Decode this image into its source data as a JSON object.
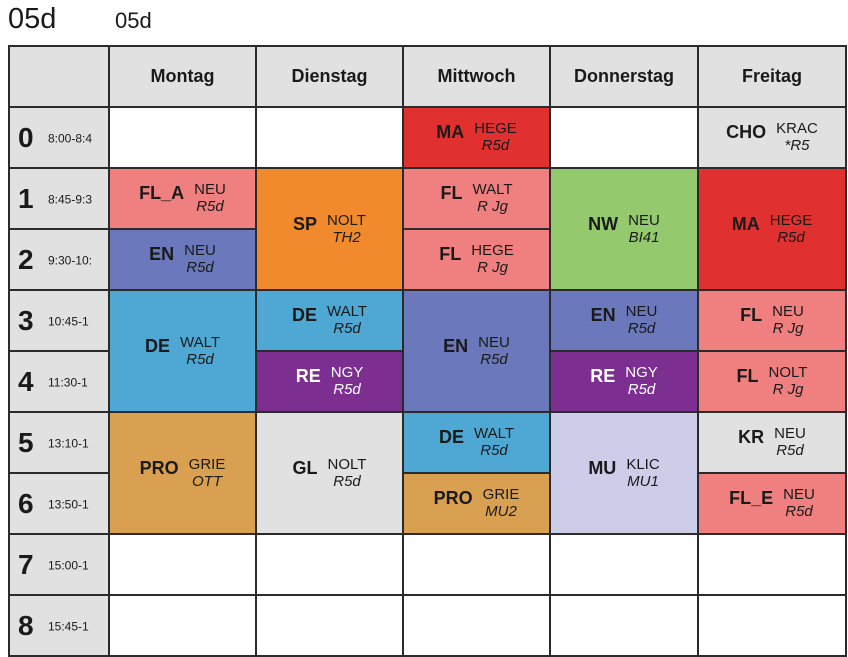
{
  "title": "05d",
  "subtitle": "05d",
  "days": [
    "Montag",
    "Dienstag",
    "Mittwoch",
    "Donnerstag",
    "Freitag"
  ],
  "periods": [
    {
      "num": "0",
      "time": "8:00-8:4"
    },
    {
      "num": "1",
      "time": "8:45-9:3"
    },
    {
      "num": "2",
      "time": "9:30-10:"
    },
    {
      "num": "3",
      "time": "10:45-1"
    },
    {
      "num": "4",
      "time": "11:30-1"
    },
    {
      "num": "5",
      "time": "13:10-1"
    },
    {
      "num": "6",
      "time": "13:50-1"
    },
    {
      "num": "7",
      "time": "15:00-1"
    },
    {
      "num": "8",
      "time": "15:45-1"
    }
  ],
  "lessons": [
    {
      "day": 0,
      "start": 1,
      "span": 1,
      "subject": "FL_A",
      "teacher": "NEU",
      "room": "R5d",
      "color": "#f08080"
    },
    {
      "day": 0,
      "start": 2,
      "span": 1,
      "subject": "EN",
      "teacher": "NEU",
      "room": "R5d",
      "color": "#6b78bb"
    },
    {
      "day": 0,
      "start": 3,
      "span": 2,
      "subject": "DE",
      "teacher": "WALT",
      "room": "R5d",
      "color": "#4fa8d3"
    },
    {
      "day": 0,
      "start": 5,
      "span": 2,
      "subject": "PRO",
      "teacher": "GRIE",
      "room": "OTT",
      "color": "#d8a050"
    },
    {
      "day": 1,
      "start": 1,
      "span": 2,
      "subject": "SP",
      "teacher": "NOLT",
      "room": "TH2",
      "color": "#f08a2c"
    },
    {
      "day": 1,
      "start": 3,
      "span": 1,
      "subject": "DE",
      "teacher": "WALT",
      "room": "R5d",
      "color": "#4fa8d3"
    },
    {
      "day": 1,
      "start": 4,
      "span": 1,
      "subject": "RE",
      "teacher": "NGY",
      "room": "R5d",
      "color": "#7c2e91",
      "light": true
    },
    {
      "day": 1,
      "start": 5,
      "span": 2,
      "subject": "GL",
      "teacher": "NOLT",
      "room": "R5d",
      "color": "#e1e1e1"
    },
    {
      "day": 2,
      "start": 0,
      "span": 1,
      "subject": "MA",
      "teacher": "HEGE",
      "room": "R5d",
      "color": "#e03030"
    },
    {
      "day": 2,
      "start": 1,
      "span": 1,
      "subject": "FL",
      "teacher": "WALT",
      "room": "R Jg",
      "color": "#f08080"
    },
    {
      "day": 2,
      "start": 2,
      "span": 1,
      "subject": "FL",
      "teacher": "HEGE",
      "room": "R Jg",
      "color": "#f08080"
    },
    {
      "day": 2,
      "start": 3,
      "span": 2,
      "subject": "EN",
      "teacher": "NEU",
      "room": "R5d",
      "color": "#6b78bb"
    },
    {
      "day": 2,
      "start": 5,
      "span": 1,
      "subject": "DE",
      "teacher": "WALT",
      "room": "R5d",
      "color": "#4fa8d3"
    },
    {
      "day": 2,
      "start": 6,
      "span": 1,
      "subject": "PRO",
      "teacher": "GRIE",
      "room": "MU2",
      "color": "#d8a050"
    },
    {
      "day": 3,
      "start": 1,
      "span": 2,
      "subject": "NW",
      "teacher": "NEU",
      "room": "BI41",
      "color": "#95c96e"
    },
    {
      "day": 3,
      "start": 3,
      "span": 1,
      "subject": "EN",
      "teacher": "NEU",
      "room": "R5d",
      "color": "#6b78bb"
    },
    {
      "day": 3,
      "start": 4,
      "span": 1,
      "subject": "RE",
      "teacher": "NGY",
      "room": "R5d",
      "color": "#7c2e91",
      "light": true
    },
    {
      "day": 3,
      "start": 5,
      "span": 2,
      "subject": "MU",
      "teacher": "KLIC",
      "room": "MU1",
      "color": "#cdcdea"
    },
    {
      "day": 4,
      "start": 0,
      "span": 1,
      "subject": "CHO",
      "teacher": "KRAC",
      "room": "*R5",
      "color": "#e1e1e1"
    },
    {
      "day": 4,
      "start": 1,
      "span": 2,
      "subject": "MA",
      "teacher": "HEGE",
      "room": "R5d",
      "color": "#e03030"
    },
    {
      "day": 4,
      "start": 3,
      "span": 1,
      "subject": "FL",
      "teacher": "NEU",
      "room": "R Jg",
      "color": "#f08080"
    },
    {
      "day": 4,
      "start": 4,
      "span": 1,
      "subject": "FL",
      "teacher": "NOLT",
      "room": "R Jg",
      "color": "#f08080"
    },
    {
      "day": 4,
      "start": 5,
      "span": 1,
      "subject": "KR",
      "teacher": "NEU",
      "room": "R5d",
      "color": "#e1e1e1"
    },
    {
      "day": 4,
      "start": 6,
      "span": 1,
      "subject": "FL_E",
      "teacher": "NEU",
      "room": "R5d",
      "color": "#f08080"
    }
  ]
}
